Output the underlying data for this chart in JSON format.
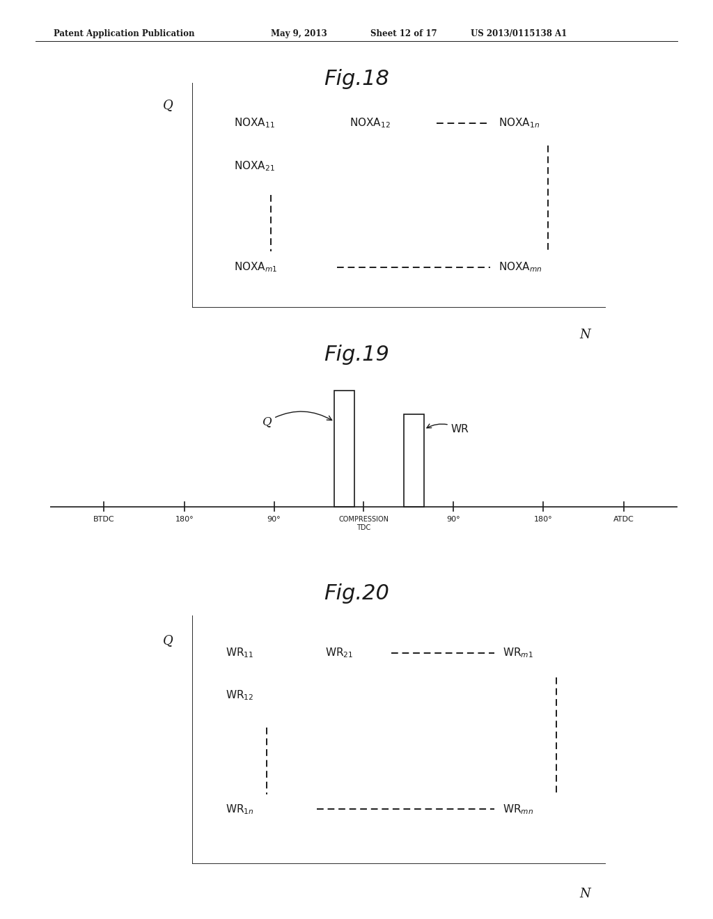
{
  "background_color": "#ffffff",
  "header_text": "Patent Application Publication",
  "header_date": "May 9, 2013",
  "header_sheet": "Sheet 12 of 17",
  "header_patent": "US 2013/0115138 A1",
  "fig18_title": "Fig.18",
  "fig19_title": "Fig.19",
  "fig20_title": "Fig.20",
  "color": "#1a1a1a"
}
